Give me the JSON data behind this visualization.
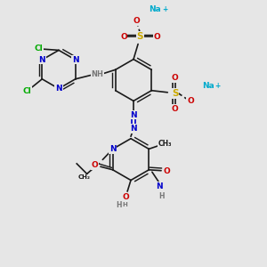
{
  "bg_color": "#e6e6e6",
  "bond_color": "#1a1a1a",
  "bond_width": 1.2,
  "colors": {
    "C": "#1a1a1a",
    "N": "#0000cc",
    "O": "#cc0000",
    "S": "#ccaa00",
    "Cl": "#00aa00",
    "Na": "#00aacc",
    "H": "#777777"
  },
  "font_size": 6.5,
  "figsize": [
    3.0,
    3.0
  ],
  "dpi": 100,
  "xlim": [
    0,
    10
  ],
  "ylim": [
    0,
    10
  ]
}
